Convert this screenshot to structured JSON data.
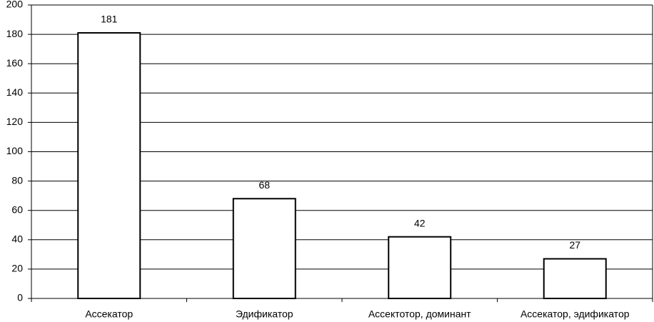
{
  "chart_data": {
    "type": "bar",
    "categories": [
      "Ассекатор",
      "Эдификатор",
      "Ассектотор, доминант",
      "Ассекатор, эдификатор"
    ],
    "values": [
      181,
      68,
      42,
      27
    ],
    "color": "#ffffff",
    "ylim": [
      0,
      200
    ],
    "yticks": [
      0,
      20,
      40,
      60,
      80,
      100,
      120,
      140,
      160,
      180,
      200
    ],
    "grid": true
  }
}
